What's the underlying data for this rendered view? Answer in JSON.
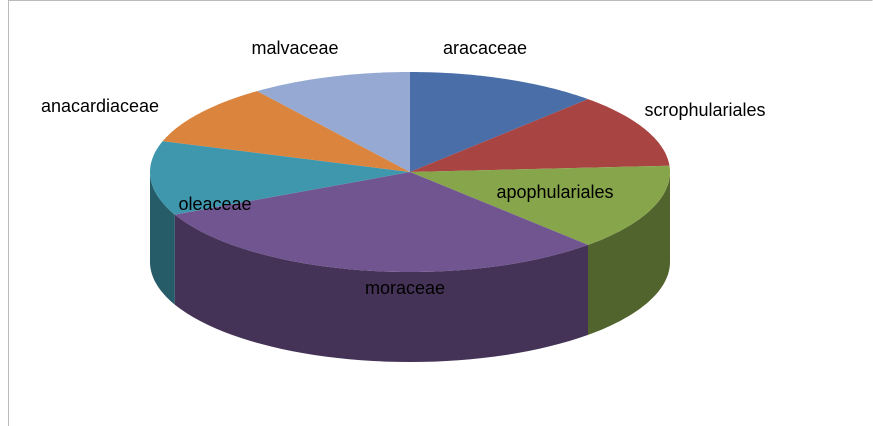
{
  "chart_data": {
    "type": "pie3d",
    "categories": [
      "aracaceae",
      "scrophulariales",
      "apophulariales",
      "moraceae",
      "oleaceae",
      "anacardiaceae",
      "malvaceae"
    ],
    "values": [
      12,
      12,
      14,
      30,
      12,
      10,
      10
    ],
    "colors": [
      "#4a6fa8",
      "#a84442",
      "#87a64b",
      "#715590",
      "#3f97ae",
      "#db843d",
      "#95a9d3"
    ]
  }
}
